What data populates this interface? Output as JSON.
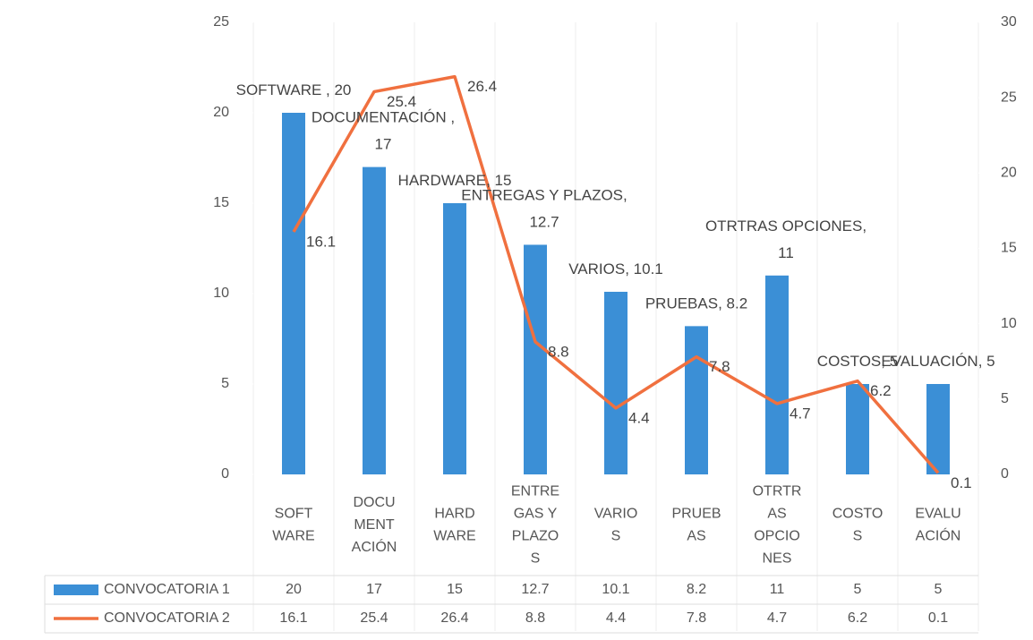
{
  "chart_data": {
    "type": "bar_line",
    "categories": [
      [
        "SOFT",
        "WARE"
      ],
      [
        "DOCU",
        "MENT",
        "ACIÓN"
      ],
      [
        "HARD",
        "WARE"
      ],
      [
        "ENTRE",
        "GAS Y",
        "PLAZO",
        "S"
      ],
      [
        "VARIO",
        "S"
      ],
      [
        "PRUEB",
        "AS"
      ],
      [
        "OTRTR",
        "AS",
        "OPCIO",
        "NES"
      ],
      [
        "COSTO",
        "S"
      ],
      [
        "EVALU",
        "ACIÓN"
      ]
    ],
    "series": [
      {
        "name": "CONVOCATORIA 1",
        "color": "#3b8fd6",
        "type": "bar",
        "values": [
          20,
          17,
          15,
          12.7,
          10.1,
          8.2,
          11,
          5,
          5
        ],
        "value_labels": [
          [
            "SOFTWARE , 20"
          ],
          [
            "DOCUMENTACIÓN ,",
            "17"
          ],
          [
            "HARDWARE, 15"
          ],
          [
            "ENTREGAS Y PLAZOS,",
            "12.7"
          ],
          [
            "VARIOS, 10.1"
          ],
          [
            "PRUEBAS, 8.2"
          ],
          [
            "OTRTRAS OPCIONES,",
            "11"
          ],
          [
            "COSTOS, 5"
          ],
          [
            "EVALUACIÓN, 5"
          ]
        ]
      },
      {
        "name": "CONVOCATORIA 2",
        "color": "#f0703f",
        "type": "line",
        "axis": "y2",
        "values": [
          16.1,
          25.4,
          26.4,
          8.8,
          4.4,
          7.8,
          4.7,
          6.2,
          0.1
        ]
      }
    ],
    "ylim": [
      0,
      25
    ],
    "yticks": [
      0,
      5,
      10,
      15,
      20,
      25
    ],
    "y2lim": [
      0,
      30
    ],
    "y2ticks": [
      0,
      5,
      10,
      15,
      20,
      25,
      30
    ],
    "data_table": true
  }
}
